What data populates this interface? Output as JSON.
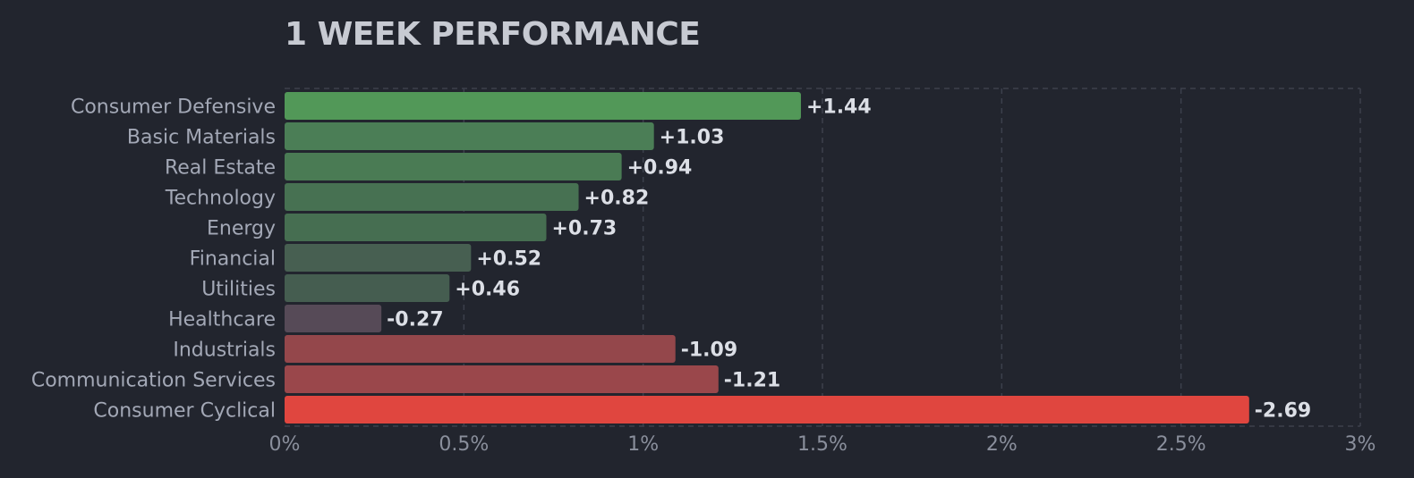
{
  "title": "1 WEEK PERFORMANCE",
  "chart_data": {
    "type": "bar",
    "orientation": "horizontal",
    "title": "1 WEEK PERFORMANCE",
    "xlabel": "",
    "ylabel": "",
    "xlim": [
      0,
      3
    ],
    "x_ticks": [
      0,
      0.5,
      1,
      1.5,
      2,
      2.5,
      3
    ],
    "x_tick_labels": [
      "0%",
      "0.5%",
      "1%",
      "1.5%",
      "2%",
      "2.5%",
      "3%"
    ],
    "grid": true,
    "categories": [
      "Consumer Defensive",
      "Basic Materials",
      "Real Estate",
      "Technology",
      "Energy",
      "Financial",
      "Utilities",
      "Healthcare",
      "Industrials",
      "Communication Services",
      "Consumer Cyclical"
    ],
    "values": [
      1.44,
      1.03,
      0.94,
      0.82,
      0.73,
      0.52,
      0.46,
      -0.27,
      -1.09,
      -1.21,
      -2.69
    ],
    "value_labels": [
      "+1.44",
      "+1.03",
      "+0.94",
      "+0.82",
      "+0.73",
      "+0.52",
      "+0.46",
      "-0.27",
      "-1.09",
      "-1.21",
      "-2.69"
    ],
    "bar_magnitude": "absolute value",
    "bar_colors": [
      "#529858",
      "#4b7e56",
      "#4a7b54",
      "#477152",
      "#466e51",
      "#475f51",
      "#455d50",
      "#564a57",
      "#94474b",
      "#9a474b",
      "#e0463f"
    ],
    "colors": {
      "background": "#22252e",
      "grid": "#3c404c",
      "category_text": "#a3a8b6",
      "value_text": "#dcdfe6",
      "tick_text": "#8a8f9c",
      "title_text": "#c7cad2"
    }
  }
}
